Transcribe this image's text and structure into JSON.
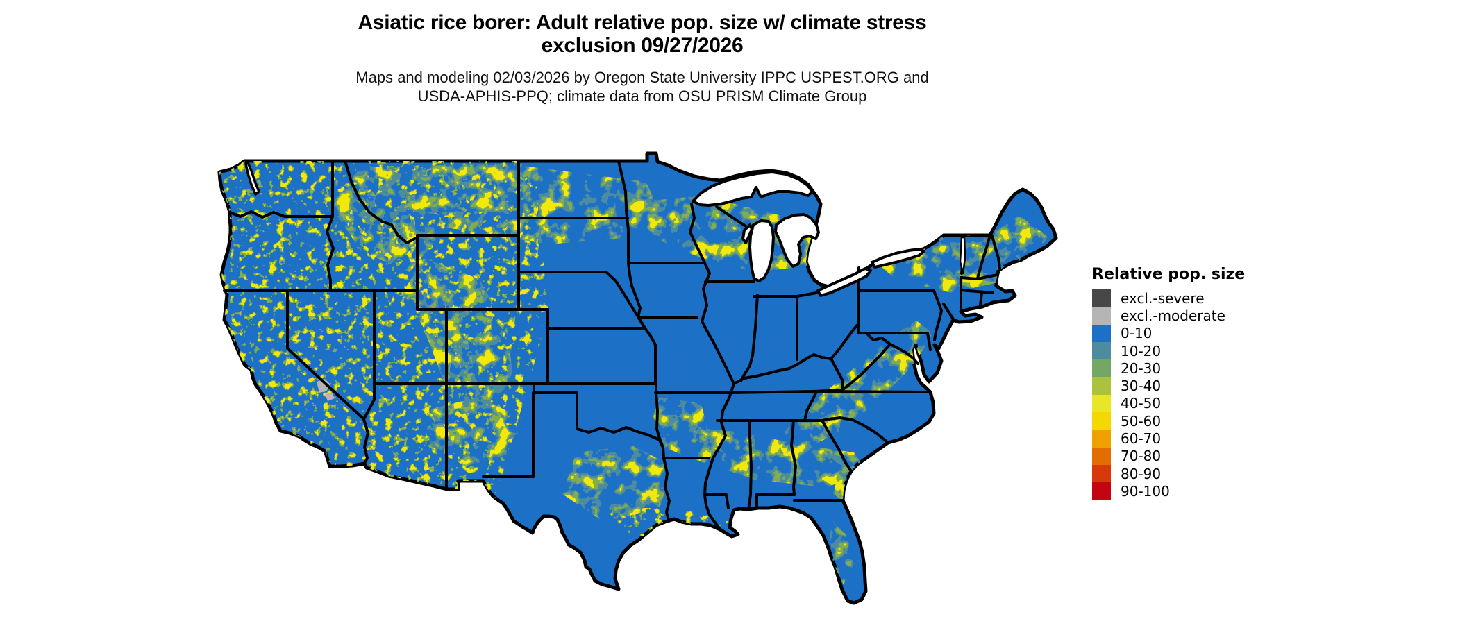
{
  "header": {
    "title_line1": "Asiatic rice borer: Adult relative pop. size w/ climate stress",
    "title_line2": "exclusion 09/27/2026",
    "subtitle_line1": "Maps and modeling 02/03/2026 by Oregon State University IPPC USPEST.ORG and",
    "subtitle_line2": "USDA-APHIS-PPQ; climate data from OSU PRISM Climate Group"
  },
  "legend": {
    "title": "Relative pop. size",
    "items": [
      {
        "label": "excl.-severe",
        "color": "#474747"
      },
      {
        "label": "excl.-moderate",
        "color": "#b5b5b5"
      },
      {
        "label": "0-10",
        "color": "#1c70c6"
      },
      {
        "label": "10-20",
        "color": "#4d8c9e"
      },
      {
        "label": "20-30",
        "color": "#74a763"
      },
      {
        "label": "30-40",
        "color": "#aac23d"
      },
      {
        "label": "40-50",
        "color": "#e8e627"
      },
      {
        "label": "50-60",
        "color": "#f4d800"
      },
      {
        "label": "60-70",
        "color": "#efa100"
      },
      {
        "label": "70-80",
        "color": "#e46d00"
      },
      {
        "label": "80-90",
        "color": "#d63a0a"
      },
      {
        "label": "90-100",
        "color": "#c40511"
      }
    ]
  },
  "map": {
    "region": "Continental United States",
    "colors": {
      "land": "#1c70c6",
      "speckle_teal": "#4d8c9e",
      "speckle_green": "#80ac52",
      "speckle_yellow": "#f2e80c",
      "lake": "#ffffff",
      "border": "#000000",
      "excluded_moderate": "#b5b5b5",
      "excluded_moderate_pink": "#c9aebc"
    }
  }
}
